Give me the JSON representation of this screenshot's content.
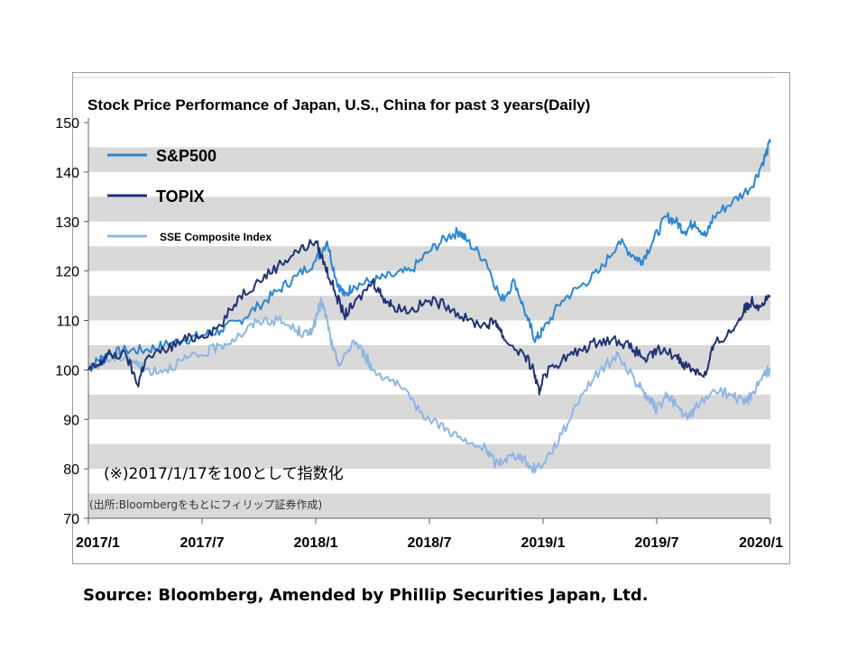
{
  "chart_data": {
    "type": "line",
    "title": "Stock Price Performance of Japan, U.S., China for past 3 years(Daily)",
    "note": "(※)2017/1/17を100として指数化",
    "source_note": "(出所:Bloombergをもとにフィリップ証券作成)",
    "xlabel": "",
    "ylabel": "",
    "xlim": [
      "2017/1",
      "2020/1"
    ],
    "ylim": [
      70,
      150
    ],
    "y_ticks": [
      150,
      140,
      130,
      120,
      110,
      100,
      90,
      80,
      70
    ],
    "x_tick_labels": [
      "2017/1",
      "2017/7",
      "2018/1",
      "2018/7",
      "2019/1",
      "2019/7",
      "2020/1"
    ],
    "x_tick_months": [
      0,
      6,
      12,
      18,
      24,
      30,
      36
    ],
    "grid": "horizontal-bands",
    "legend_position": "top-left",
    "series": [
      {
        "name": "S&P500",
        "color": "#2e86d0",
        "points": [
          [
            0,
            100
          ],
          [
            0.5,
            102
          ],
          [
            1,
            103
          ],
          [
            2,
            104
          ],
          [
            3,
            104
          ],
          [
            4,
            105
          ],
          [
            5,
            106
          ],
          [
            6,
            107
          ],
          [
            7,
            108
          ],
          [
            8,
            110
          ],
          [
            9,
            113
          ],
          [
            10,
            116
          ],
          [
            11,
            119
          ],
          [
            12,
            122
          ],
          [
            12.6,
            126
          ],
          [
            13.1,
            118
          ],
          [
            13.5,
            115
          ],
          [
            14,
            117
          ],
          [
            15,
            118
          ],
          [
            16,
            119
          ],
          [
            17,
            120
          ],
          [
            18,
            124
          ],
          [
            19,
            127
          ],
          [
            19.6,
            128
          ],
          [
            20,
            126
          ],
          [
            21,
            122
          ],
          [
            21.8,
            114
          ],
          [
            22.5,
            118
          ],
          [
            23.2,
            110
          ],
          [
            23.6,
            106
          ],
          [
            24,
            108
          ],
          [
            25,
            114
          ],
          [
            26,
            117
          ],
          [
            27,
            120
          ],
          [
            28,
            126
          ],
          [
            28.8,
            123
          ],
          [
            29.2,
            122
          ],
          [
            29.8,
            126
          ],
          [
            30.5,
            131
          ],
          [
            31,
            130
          ],
          [
            31.5,
            128
          ],
          [
            32,
            130
          ],
          [
            32.6,
            127
          ],
          [
            33,
            131
          ],
          [
            34,
            134
          ],
          [
            35,
            137
          ],
          [
            35.6,
            142
          ],
          [
            36,
            146
          ]
        ]
      },
      {
        "name": "TOPIX",
        "color": "#1f3373",
        "points": [
          [
            0,
            100
          ],
          [
            0.6,
            101
          ],
          [
            1,
            103
          ],
          [
            2,
            103
          ],
          [
            2.6,
            97
          ],
          [
            3,
            102
          ],
          [
            4,
            104
          ],
          [
            5,
            106
          ],
          [
            6,
            107
          ],
          [
            7,
            109
          ],
          [
            8,
            115
          ],
          [
            9,
            118
          ],
          [
            10,
            121
          ],
          [
            11,
            124
          ],
          [
            12,
            126
          ],
          [
            12.5,
            121
          ],
          [
            13,
            116
          ],
          [
            13.5,
            111
          ],
          [
            14,
            113
          ],
          [
            15,
            118
          ],
          [
            15.5,
            115
          ],
          [
            16,
            113
          ],
          [
            17,
            112
          ],
          [
            18,
            114
          ],
          [
            19,
            113
          ],
          [
            20,
            110
          ],
          [
            21,
            109
          ],
          [
            21.5,
            110
          ],
          [
            22,
            106
          ],
          [
            23,
            103
          ],
          [
            23.5,
            100
          ],
          [
            23.8,
            95
          ],
          [
            24,
            99
          ],
          [
            25,
            102
          ],
          [
            26,
            104
          ],
          [
            27,
            106
          ],
          [
            28,
            106
          ],
          [
            28.8,
            104
          ],
          [
            29.5,
            102
          ],
          [
            30,
            104
          ],
          [
            31,
            103
          ],
          [
            31.5,
            101
          ],
          [
            32,
            100
          ],
          [
            32.6,
            99
          ],
          [
            33,
            105
          ],
          [
            34,
            108
          ],
          [
            34.6,
            112
          ],
          [
            35,
            114
          ],
          [
            35.4,
            113
          ],
          [
            36,
            115
          ]
        ]
      },
      {
        "name": "SSE Composite Index",
        "color": "#8fb6e3",
        "points": [
          [
            0,
            100
          ],
          [
            1,
            102
          ],
          [
            2,
            103
          ],
          [
            2.6,
            101
          ],
          [
            3,
            100
          ],
          [
            4,
            100
          ],
          [
            5,
            102
          ],
          [
            6,
            103
          ],
          [
            7,
            105
          ],
          [
            8,
            107
          ],
          [
            9,
            110
          ],
          [
            10,
            110
          ],
          [
            11,
            108
          ],
          [
            11.6,
            107
          ],
          [
            12,
            110
          ],
          [
            12.3,
            114
          ],
          [
            12.6,
            110
          ],
          [
            12.9,
            104
          ],
          [
            13.3,
            101
          ],
          [
            14,
            106
          ],
          [
            14.6,
            103
          ],
          [
            15,
            100
          ],
          [
            16,
            98
          ],
          [
            17,
            94
          ],
          [
            18,
            90
          ],
          [
            19,
            88
          ],
          [
            20,
            85
          ],
          [
            21,
            84
          ],
          [
            21.5,
            81
          ],
          [
            22,
            82
          ],
          [
            22.7,
            83
          ],
          [
            23.4,
            80
          ],
          [
            24,
            81
          ],
          [
            25,
            87
          ],
          [
            26,
            95
          ],
          [
            27,
            100
          ],
          [
            28,
            103
          ],
          [
            29,
            97
          ],
          [
            29.6,
            94
          ],
          [
            30,
            92
          ],
          [
            30.6,
            95
          ],
          [
            31,
            93
          ],
          [
            31.6,
            90
          ],
          [
            32,
            92
          ],
          [
            33,
            96
          ],
          [
            34,
            95
          ],
          [
            34.6,
            93
          ],
          [
            35,
            95
          ],
          [
            35.6,
            99
          ],
          [
            36,
            100
          ]
        ]
      }
    ]
  },
  "source_text": "Source: Bloomberg, Amended by Phillip Securities Japan, Ltd."
}
